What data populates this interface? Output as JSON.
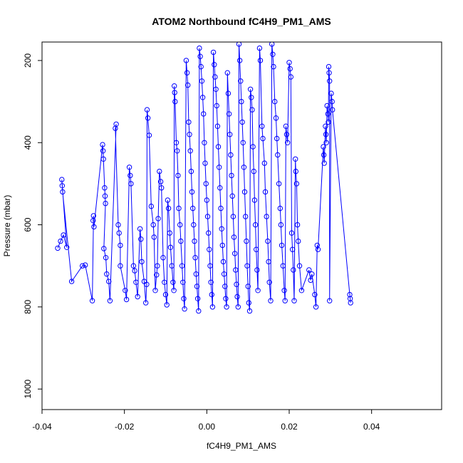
{
  "chart_data": {
    "type": "scatter",
    "title": "ATOM2 Northbound fC4H9_PM1_AMS",
    "xlabel": "fC4H9_PM1_AMS",
    "ylabel": "Pressure (mbar)",
    "xlim": [
      -0.04,
      0.057
    ],
    "ylim": [
      1050,
      155
    ],
    "y_reversed": true,
    "x_ticks": [
      -0.04,
      -0.02,
      0.0,
      0.02,
      0.04
    ],
    "x_tick_labels": [
      "-0.04",
      "-0.02",
      "0.00",
      "0.02",
      "0.04"
    ],
    "y_ticks": [
      200,
      400,
      600,
      800,
      1000
    ],
    "y_tick_labels": [
      "200",
      "400",
      "600",
      "800",
      "1000"
    ],
    "grid": false,
    "series": [
      {
        "color": "#0000ff",
        "marker": "open-circle",
        "connected": true,
        "points": [
          [
            -0.0362,
            657
          ],
          [
            -0.0355,
            640
          ],
          [
            -0.0348,
            625
          ],
          [
            -0.034,
            655
          ],
          [
            -0.0352,
            490
          ],
          [
            -0.0351,
            505
          ],
          [
            -0.035,
            520
          ],
          [
            -0.0328,
            738
          ],
          [
            -0.0302,
            700
          ],
          [
            -0.0295,
            698
          ],
          [
            -0.0278,
            785
          ],
          [
            -0.0275,
            578
          ],
          [
            -0.0276,
            590
          ],
          [
            -0.0274,
            605
          ],
          [
            -0.0253,
            405
          ],
          [
            -0.0252,
            420
          ],
          [
            -0.0251,
            440
          ],
          [
            -0.0248,
            510
          ],
          [
            -0.0247,
            530
          ],
          [
            -0.0246,
            548
          ],
          [
            -0.025,
            658
          ],
          [
            -0.0245,
            680
          ],
          [
            -0.0243,
            720
          ],
          [
            -0.0238,
            738
          ],
          [
            -0.0235,
            785
          ],
          [
            -0.022,
            355
          ],
          [
            -0.0222,
            365
          ],
          [
            -0.0215,
            600
          ],
          [
            -0.0213,
            620
          ],
          [
            -0.021,
            650
          ],
          [
            -0.021,
            700
          ],
          [
            -0.0198,
            760
          ],
          [
            -0.0195,
            782
          ],
          [
            -0.0188,
            460
          ],
          [
            -0.0186,
            480
          ],
          [
            -0.0184,
            500
          ],
          [
            -0.0178,
            700
          ],
          [
            -0.0175,
            712
          ],
          [
            -0.0172,
            740
          ],
          [
            -0.0168,
            775
          ],
          [
            -0.0162,
            610
          ],
          [
            -0.016,
            635
          ],
          [
            -0.0158,
            690
          ],
          [
            -0.0152,
            738
          ],
          [
            -0.0148,
            790
          ],
          [
            -0.0146,
            745
          ],
          [
            -0.0145,
            320
          ],
          [
            -0.0143,
            340
          ],
          [
            -0.014,
            382
          ],
          [
            -0.0135,
            555
          ],
          [
            -0.013,
            600
          ],
          [
            -0.0128,
            630
          ],
          [
            -0.0125,
            760
          ],
          [
            -0.0122,
            722
          ],
          [
            -0.012,
            700
          ],
          [
            -0.0118,
            585
          ],
          [
            -0.0115,
            470
          ],
          [
            -0.0112,
            495
          ],
          [
            -0.011,
            510
          ],
          [
            -0.0106,
            680
          ],
          [
            -0.0103,
            740
          ],
          [
            -0.01,
            770
          ],
          [
            -0.0097,
            795
          ],
          [
            -0.0095,
            540
          ],
          [
            -0.0093,
            560
          ],
          [
            -0.009,
            620
          ],
          [
            -0.0088,
            655
          ],
          [
            -0.0085,
            700
          ],
          [
            -0.0082,
            740
          ],
          [
            -0.008,
            760
          ],
          [
            -0.0079,
            262
          ],
          [
            -0.0078,
            278
          ],
          [
            -0.0077,
            300
          ],
          [
            -0.0074,
            400
          ],
          [
            -0.0072,
            420
          ],
          [
            -0.007,
            480
          ],
          [
            -0.0068,
            560
          ],
          [
            -0.0065,
            600
          ],
          [
            -0.0063,
            640
          ],
          [
            -0.006,
            700
          ],
          [
            -0.0058,
            740
          ],
          [
            -0.0056,
            780
          ],
          [
            -0.0054,
            805
          ],
          [
            -0.005,
            200
          ],
          [
            -0.0048,
            230
          ],
          [
            -0.0046,
            260
          ],
          [
            -0.0044,
            350
          ],
          [
            -0.0042,
            380
          ],
          [
            -0.004,
            420
          ],
          [
            -0.0038,
            470
          ],
          [
            -0.0036,
            520
          ],
          [
            -0.0034,
            560
          ],
          [
            -0.0032,
            600
          ],
          [
            -0.003,
            640
          ],
          [
            -0.0028,
            680
          ],
          [
            -0.0026,
            720
          ],
          [
            -0.0024,
            750
          ],
          [
            -0.0022,
            780
          ],
          [
            -0.002,
            810
          ],
          [
            -0.0018,
            170
          ],
          [
            -0.0016,
            190
          ],
          [
            -0.0014,
            215
          ],
          [
            -0.0012,
            250
          ],
          [
            -0.001,
            290
          ],
          [
            -0.0008,
            330
          ],
          [
            -0.0006,
            400
          ],
          [
            -0.0004,
            450
          ],
          [
            -0.0002,
            500
          ],
          [
            0.0,
            540
          ],
          [
            0.0002,
            580
          ],
          [
            0.0004,
            620
          ],
          [
            0.0006,
            660
          ],
          [
            0.0008,
            700
          ],
          [
            0.001,
            740
          ],
          [
            0.0012,
            770
          ],
          [
            0.0014,
            800
          ],
          [
            0.0016,
            180
          ],
          [
            0.0018,
            210
          ],
          [
            0.002,
            240
          ],
          [
            0.0022,
            270
          ],
          [
            0.0024,
            310
          ],
          [
            0.0026,
            360
          ],
          [
            0.0028,
            410
          ],
          [
            0.003,
            460
          ],
          [
            0.0032,
            510
          ],
          [
            0.0034,
            560
          ],
          [
            0.0036,
            610
          ],
          [
            0.0038,
            650
          ],
          [
            0.004,
            690
          ],
          [
            0.0042,
            720
          ],
          [
            0.0044,
            750
          ],
          [
            0.0046,
            780
          ],
          [
            0.0048,
            800
          ],
          [
            0.005,
            230
          ],
          [
            0.0052,
            280
          ],
          [
            0.0054,
            330
          ],
          [
            0.0056,
            380
          ],
          [
            0.0058,
            430
          ],
          [
            0.006,
            480
          ],
          [
            0.0062,
            530
          ],
          [
            0.0064,
            580
          ],
          [
            0.0066,
            630
          ],
          [
            0.0068,
            670
          ],
          [
            0.007,
            710
          ],
          [
            0.0072,
            745
          ],
          [
            0.0074,
            775
          ],
          [
            0.0076,
            800
          ],
          [
            0.0078,
            160
          ],
          [
            0.008,
            200
          ],
          [
            0.0082,
            250
          ],
          [
            0.0084,
            300
          ],
          [
            0.0086,
            350
          ],
          [
            0.0088,
            400
          ],
          [
            0.009,
            460
          ],
          [
            0.0092,
            520
          ],
          [
            0.0094,
            580
          ],
          [
            0.0096,
            640
          ],
          [
            0.0098,
            700
          ],
          [
            0.01,
            750
          ],
          [
            0.0102,
            790
          ],
          [
            0.0104,
            810
          ],
          [
            0.0106,
            270
          ],
          [
            0.0108,
            290
          ],
          [
            0.011,
            320
          ],
          [
            0.0112,
            410
          ],
          [
            0.0114,
            470
          ],
          [
            0.0116,
            540
          ],
          [
            0.0118,
            600
          ],
          [
            0.012,
            660
          ],
          [
            0.0122,
            710
          ],
          [
            0.0124,
            760
          ],
          [
            0.0128,
            170
          ],
          [
            0.013,
            200
          ],
          [
            0.0134,
            360
          ],
          [
            0.0136,
            390
          ],
          [
            0.014,
            450
          ],
          [
            0.0142,
            520
          ],
          [
            0.0145,
            580
          ],
          [
            0.0148,
            640
          ],
          [
            0.015,
            690
          ],
          [
            0.0152,
            740
          ],
          [
            0.0155,
            785
          ],
          [
            0.0158,
            160
          ],
          [
            0.016,
            185
          ],
          [
            0.0162,
            215
          ],
          [
            0.0165,
            300
          ],
          [
            0.0168,
            340
          ],
          [
            0.017,
            390
          ],
          [
            0.0172,
            430
          ],
          [
            0.0175,
            500
          ],
          [
            0.0178,
            560
          ],
          [
            0.018,
            600
          ],
          [
            0.0182,
            650
          ],
          [
            0.0185,
            700
          ],
          [
            0.0188,
            760
          ],
          [
            0.019,
            785
          ],
          [
            0.0192,
            360
          ],
          [
            0.0194,
            380
          ],
          [
            0.0196,
            400
          ],
          [
            0.02,
            205
          ],
          [
            0.0202,
            220
          ],
          [
            0.0204,
            240
          ],
          [
            0.0206,
            620
          ],
          [
            0.0208,
            660
          ],
          [
            0.021,
            710
          ],
          [
            0.0212,
            785
          ],
          [
            0.0215,
            440
          ],
          [
            0.0216,
            470
          ],
          [
            0.0218,
            500
          ],
          [
            0.022,
            600
          ],
          [
            0.0222,
            640
          ],
          [
            0.0225,
            700
          ],
          [
            0.023,
            760
          ],
          [
            0.0248,
            710
          ],
          [
            0.0252,
            735
          ],
          [
            0.0255,
            720
          ],
          [
            0.0262,
            770
          ],
          [
            0.0265,
            800
          ],
          [
            0.0268,
            650
          ],
          [
            0.027,
            660
          ],
          [
            0.0283,
            410
          ],
          [
            0.0284,
            430
          ],
          [
            0.0285,
            450
          ],
          [
            0.0288,
            360
          ],
          [
            0.0289,
            380
          ],
          [
            0.029,
            400
          ],
          [
            0.0292,
            310
          ],
          [
            0.0294,
            330
          ],
          [
            0.0295,
            350
          ],
          [
            0.0296,
            215
          ],
          [
            0.0297,
            230
          ],
          [
            0.0298,
            250
          ],
          [
            0.0298,
            785
          ],
          [
            0.0302,
            280
          ],
          [
            0.0304,
            300
          ],
          [
            0.0305,
            320
          ],
          [
            0.0347,
            770
          ],
          [
            0.0348,
            780
          ],
          [
            0.0349,
            790
          ]
        ]
      }
    ]
  }
}
